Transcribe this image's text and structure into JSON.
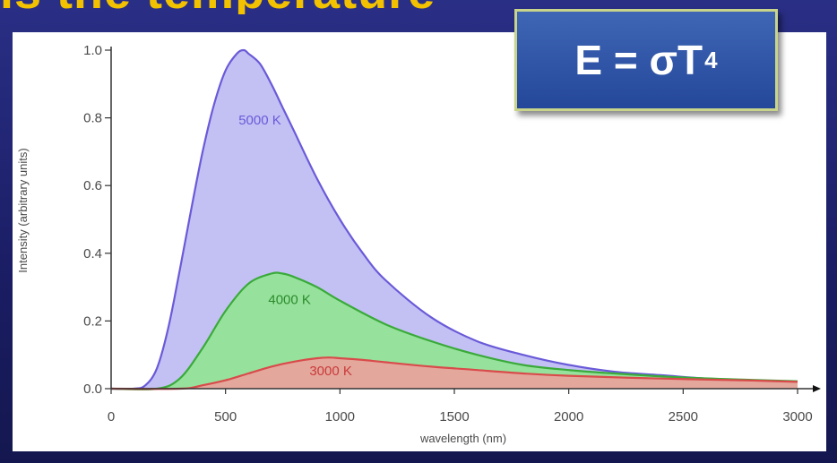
{
  "slide": {
    "title": "is the temperature"
  },
  "formula": {
    "base": "E = σT",
    "exponent": "4"
  },
  "colors": {
    "curve_5000": "#6a5ad8",
    "fill_5000": "#b9b6f2",
    "curve_4000": "#3aaa3a",
    "fill_4000": "#8ee88c",
    "curve_3000": "#d94b4b",
    "fill_3000": "#f29c9c",
    "formula_box": "#2f57a8",
    "title": "#f2c200"
  },
  "chart_data": {
    "type": "area",
    "title": "",
    "xlabel": "wavelength (nm)",
    "ylabel": "Intensity (arbitrary units)",
    "xlim": [
      0,
      3000
    ],
    "ylim": [
      0,
      1.0
    ],
    "x_ticks": [
      0,
      500,
      1000,
      1500,
      2000,
      2500,
      3000
    ],
    "y_ticks": [
      "0.0",
      "0.2",
      "0.4",
      "0.6",
      "0.8",
      "1.0"
    ],
    "grid": false,
    "series": [
      {
        "name": "5000 K",
        "x": [
          0,
          100,
          150,
          200,
          250,
          300,
          350,
          400,
          450,
          500,
          550,
          580,
          600,
          650,
          700,
          750,
          800,
          900,
          1000,
          1100,
          1200,
          1400,
          1600,
          1800,
          2000,
          2200,
          2400,
          2600,
          2800,
          3000
        ],
        "values": [
          0,
          0.0,
          0.01,
          0.06,
          0.18,
          0.35,
          0.53,
          0.7,
          0.84,
          0.94,
          0.99,
          1.0,
          0.99,
          0.96,
          0.9,
          0.83,
          0.76,
          0.62,
          0.5,
          0.4,
          0.32,
          0.21,
          0.14,
          0.1,
          0.07,
          0.05,
          0.04,
          0.03,
          0.025,
          0.02
        ]
      },
      {
        "name": "4000 K",
        "x": [
          0,
          200,
          300,
          400,
          500,
          600,
          700,
          750,
          800,
          900,
          1000,
          1200,
          1400,
          1600,
          1800,
          2000,
          2200,
          2500,
          2800,
          3000
        ],
        "values": [
          0,
          0.0,
          0.03,
          0.12,
          0.23,
          0.31,
          0.34,
          0.34,
          0.33,
          0.3,
          0.26,
          0.19,
          0.14,
          0.1,
          0.07,
          0.055,
          0.045,
          0.033,
          0.026,
          0.022
        ]
      },
      {
        "name": "3000 K",
        "x": [
          0,
          300,
          400,
          500,
          600,
          700,
          800,
          900,
          950,
          1000,
          1100,
          1200,
          1400,
          1600,
          1800,
          2000,
          2400,
          2800,
          3000
        ],
        "values": [
          0,
          0.0,
          0.01,
          0.025,
          0.045,
          0.065,
          0.08,
          0.09,
          0.092,
          0.09,
          0.085,
          0.078,
          0.065,
          0.055,
          0.045,
          0.038,
          0.03,
          0.024,
          0.02
        ]
      }
    ],
    "curve_labels": [
      {
        "text": "5000 K",
        "x": 650,
        "y": 0.78
      },
      {
        "text": "4000 K",
        "x": 780,
        "y": 0.25
      },
      {
        "text": "3000 K",
        "x": 960,
        "y": 0.04
      }
    ]
  }
}
